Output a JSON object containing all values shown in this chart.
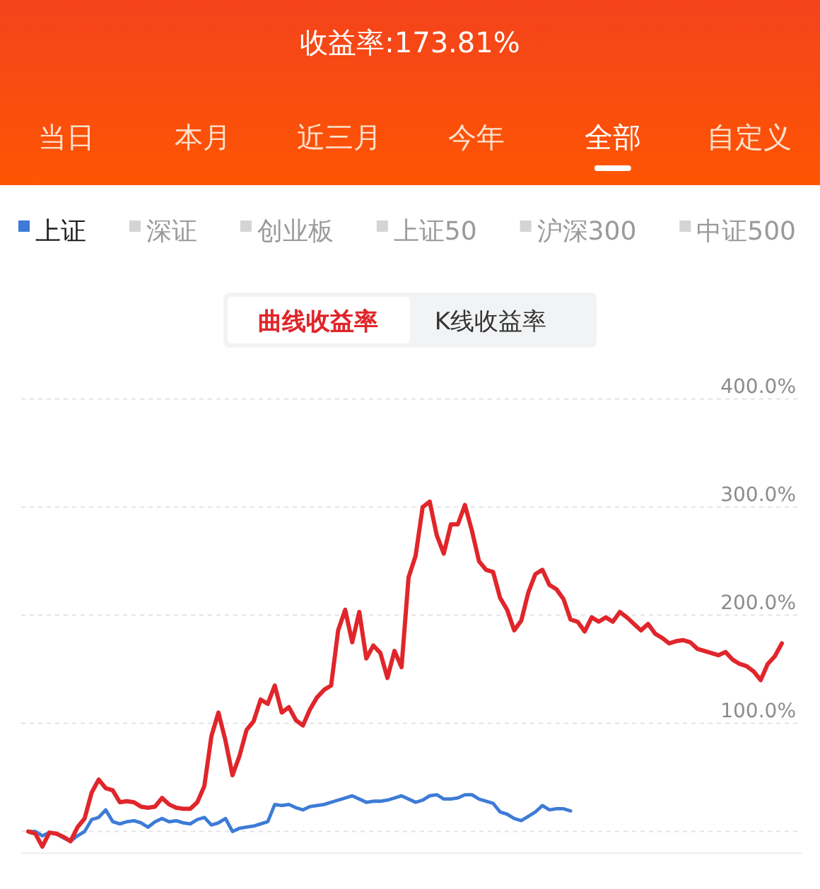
{
  "chart_data": {
    "type": "line",
    "title": "收益率:173.81%",
    "annotations": [
      "当日",
      "本月",
      "近三月",
      "今年",
      "全部",
      "自定义",
      "曲线收益率",
      "K线收益率"
    ],
    "categories": [
      null,
      null,
      null,
      null,
      null,
      null,
      null,
      null,
      null,
      null,
      null,
      null,
      null,
      null,
      null,
      null,
      null,
      null,
      null,
      null,
      null,
      null,
      null,
      null,
      null,
      null,
      null,
      null,
      null,
      null,
      null,
      null,
      null,
      null,
      null,
      null,
      null,
      null,
      null,
      null,
      null,
      null,
      null,
      null,
      null,
      null,
      null,
      null,
      null,
      null,
      null,
      null,
      null,
      null,
      null,
      null,
      null,
      null,
      null,
      null,
      null,
      null,
      null,
      null,
      null,
      null,
      null,
      null,
      null,
      null,
      null,
      null,
      null,
      null,
      null,
      null,
      null,
      null,
      null,
      null,
      null,
      null,
      null,
      null,
      null,
      null,
      null,
      null,
      null,
      null,
      null,
      null,
      null,
      null,
      null,
      null,
      null,
      null,
      null,
      null,
      null,
      null,
      null,
      null,
      null,
      null,
      null,
      null
    ],
    "series": [
      {
        "name": "上证",
        "color": "#3d7bd6",
        "values": [
          0,
          0,
          -4,
          -1,
          -2,
          -6,
          -9,
          -4,
          0,
          11,
          13,
          20,
          9,
          7,
          9,
          10,
          8,
          4,
          9,
          12,
          9,
          10,
          8,
          7,
          11,
          13,
          6,
          8,
          12,
          0,
          3,
          4,
          5,
          7,
          9,
          25,
          24,
          25,
          22,
          20,
          23,
          24,
          25,
          27,
          29,
          31,
          33,
          30,
          27,
          28,
          28,
          29,
          31,
          33,
          30,
          27,
          29,
          33,
          34,
          30,
          30,
          31,
          34,
          34,
          30,
          28,
          26,
          18,
          16,
          12,
          10,
          14,
          18,
          24,
          20,
          21,
          21,
          19,
          null,
          null,
          null,
          null,
          null,
          null,
          null,
          null,
          null,
          null,
          null,
          null,
          null,
          null,
          null,
          null,
          null,
          null,
          null,
          null,
          null,
          null,
          null,
          null,
          null,
          null,
          null,
          null,
          null,
          null
        ]
      },
      {
        "name": "深证",
        "color": "#d4d4d4",
        "values": [
          null,
          null,
          null,
          null,
          null,
          null,
          null,
          null,
          null,
          null,
          null,
          null,
          null,
          null,
          null,
          null,
          null,
          null,
          null,
          null,
          null,
          null,
          null,
          null,
          null,
          null,
          null,
          null,
          null,
          null,
          null,
          null,
          null,
          null,
          null,
          null,
          null,
          null,
          null,
          null,
          null,
          null,
          null,
          null,
          null,
          null,
          null,
          null,
          null,
          null,
          null,
          null,
          null,
          null,
          null,
          null,
          null,
          null,
          null,
          null,
          null,
          null,
          null,
          null,
          null,
          null,
          null,
          null,
          null,
          null,
          null,
          null,
          null,
          null,
          null,
          null,
          null,
          null,
          null,
          null,
          null,
          null,
          null,
          null,
          null,
          null,
          null,
          null,
          null,
          null,
          null,
          null,
          null,
          null,
          null,
          null,
          null,
          null,
          null,
          null,
          null,
          null,
          null,
          null,
          null,
          null,
          null,
          null
        ]
      },
      {
        "name": "创业板",
        "color": "#d4d4d4",
        "values": [
          null,
          null,
          null,
          null,
          null,
          null,
          null,
          null,
          null,
          null,
          null,
          null,
          null,
          null,
          null,
          null,
          null,
          null,
          null,
          null,
          null,
          null,
          null,
          null,
          null,
          null,
          null,
          null,
          null,
          null,
          null,
          null,
          null,
          null,
          null,
          null,
          null,
          null,
          null,
          null,
          null,
          null,
          null,
          null,
          null,
          null,
          null,
          null,
          null,
          null,
          null,
          null,
          null,
          null,
          null,
          null,
          null,
          null,
          null,
          null,
          null,
          null,
          null,
          null,
          null,
          null,
          null,
          null,
          null,
          null,
          null,
          null,
          null,
          null,
          null,
          null,
          null,
          null,
          null,
          null,
          null,
          null,
          null,
          null,
          null,
          null,
          null,
          null,
          null,
          null,
          null,
          null,
          null,
          null,
          null,
          null,
          null,
          null,
          null,
          null,
          null,
          null,
          null,
          null,
          null,
          null,
          null,
          null
        ]
      },
      {
        "name": "上证50",
        "color": "#d4d4d4",
        "values": [
          null,
          null,
          null,
          null,
          null,
          null,
          null,
          null,
          null,
          null,
          null,
          null,
          null,
          null,
          null,
          null,
          null,
          null,
          null,
          null,
          null,
          null,
          null,
          null,
          null,
          null,
          null,
          null,
          null,
          null,
          null,
          null,
          null,
          null,
          null,
          null,
          null,
          null,
          null,
          null,
          null,
          null,
          null,
          null,
          null,
          null,
          null,
          null,
          null,
          null,
          null,
          null,
          null,
          null,
          null,
          null,
          null,
          null,
          null,
          null,
          null,
          null,
          null,
          null,
          null,
          null,
          null,
          null,
          null,
          null,
          null,
          null,
          null,
          null,
          null,
          null,
          null,
          null,
          null,
          null,
          null,
          null,
          null,
          null,
          null,
          null,
          null,
          null,
          null,
          null,
          null,
          null,
          null,
          null,
          null,
          null,
          null,
          null,
          null,
          null,
          null,
          null,
          null,
          null,
          null,
          null,
          null,
          null
        ]
      },
      {
        "name": "沪深300",
        "color": "#d4d4d4",
        "values": [
          null,
          null,
          null,
          null,
          null,
          null,
          null,
          null,
          null,
          null,
          null,
          null,
          null,
          null,
          null,
          null,
          null,
          null,
          null,
          null,
          null,
          null,
          null,
          null,
          null,
          null,
          null,
          null,
          null,
          null,
          null,
          null,
          null,
          null,
          null,
          null,
          null,
          null,
          null,
          null,
          null,
          null,
          null,
          null,
          null,
          null,
          null,
          null,
          null,
          null,
          null,
          null,
          null,
          null,
          null,
          null,
          null,
          null,
          null,
          null,
          null,
          null,
          null,
          null,
          null,
          null,
          null,
          null,
          null,
          null,
          null,
          null,
          null,
          null,
          null,
          null,
          null,
          null,
          null,
          null,
          null,
          null,
          null,
          null,
          null,
          null,
          null,
          null,
          null,
          null,
          null,
          null,
          null,
          null,
          null,
          null,
          null,
          null,
          null,
          null,
          null,
          null,
          null,
          null,
          null,
          null,
          null,
          null
        ]
      },
      {
        "name": "中证500",
        "color": "#d4d4d4",
        "values": [
          null,
          null,
          null,
          null,
          null,
          null,
          null,
          null,
          null,
          null,
          null,
          null,
          null,
          null,
          null,
          null,
          null,
          null,
          null,
          null,
          null,
          null,
          null,
          null,
          null,
          null,
          null,
          null,
          null,
          null,
          null,
          null,
          null,
          null,
          null,
          null,
          null,
          null,
          null,
          null,
          null,
          null,
          null,
          null,
          null,
          null,
          null,
          null,
          null,
          null,
          null,
          null,
          null,
          null,
          null,
          null,
          null,
          null,
          null,
          null,
          null,
          null,
          null,
          null,
          null,
          null,
          null,
          null,
          null,
          null,
          null,
          null,
          null,
          null,
          null,
          null,
          null,
          null,
          null,
          null,
          null,
          null,
          null,
          null,
          null,
          null,
          null,
          null,
          null,
          null,
          null,
          null,
          null,
          null,
          null,
          null,
          null,
          null,
          null,
          null,
          null,
          null,
          null,
          null,
          null,
          null,
          null,
          null
        ]
      },
      {
        "color": "#e0262b",
        "values": [
          0,
          -2,
          -14,
          -1,
          -2,
          -5,
          -9,
          4,
          12,
          36,
          48,
          40,
          38,
          27,
          28,
          27,
          23,
          22,
          23,
          31,
          25,
          22,
          21,
          21,
          27,
          42,
          88,
          110,
          84,
          52,
          70,
          94,
          102,
          122,
          118,
          135,
          110,
          115,
          103,
          98,
          113,
          124,
          131,
          135,
          186,
          205,
          175,
          203,
          160,
          172,
          165,
          142,
          167,
          152,
          235,
          255,
          300,
          305,
          274,
          257,
          284,
          284,
          302,
          278,
          250,
          242,
          240,
          216,
          205,
          186,
          195,
          221,
          238,
          242,
          228,
          224,
          215,
          196,
          194,
          185,
          198,
          194,
          198,
          194,
          203,
          198,
          192,
          186,
          192,
          183,
          179,
          174,
          176,
          177,
          175,
          169,
          167,
          165,
          163,
          166,
          159,
          155,
          153,
          148,
          140,
          155,
          162,
          174
        ]
      }
    ],
    "ylim": [
      -20,
      400
    ],
    "yticks": [
      {
        "value": 0,
        "label": null
      },
      {
        "value": 100,
        "label": "100.0%"
      },
      {
        "value": 200,
        "label": "200.0%"
      },
      {
        "value": 300,
        "label": "300.0%"
      },
      {
        "value": 400,
        "label": "400.0%"
      }
    ],
    "grid": "y",
    "legend": "top",
    "tick_labels": "y"
  }
}
